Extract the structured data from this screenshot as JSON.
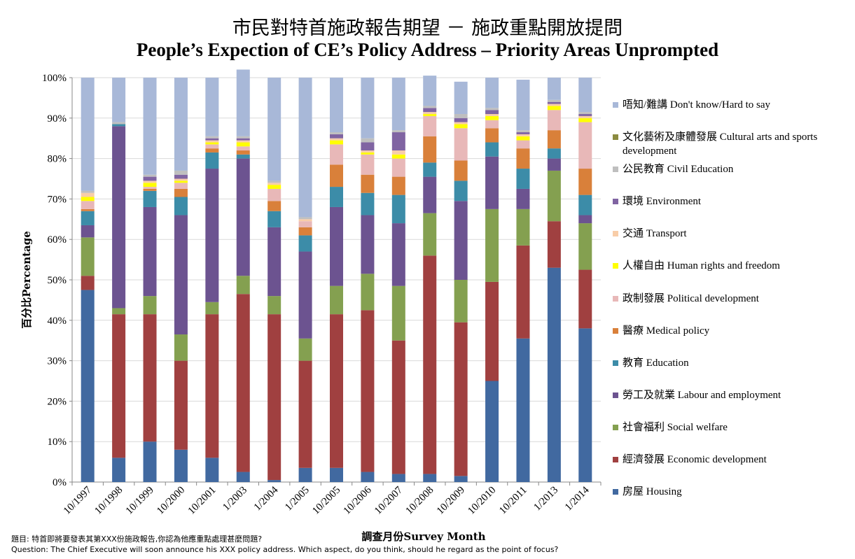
{
  "title_zh": "市民對特首施政報告期望 － 施政重點開放提問",
  "title_en": "People’s Expection of CE’s Policy Address – Priority Areas Unprompted",
  "footnote_zh": "題目: 特首即將要發表其第XXX份施政報告,你認為他應重點處理甚麼問題?",
  "footnote_en": "Question: The Chief Executive  will  soon announce his XXX policy  address. Which aspect, do you think,  should he regard as the point of focus?",
  "chart_data": {
    "type": "bar",
    "stacked": true,
    "xlabel": "調查月份Survey Month",
    "ylabel": "百分比Percentage",
    "ylim": [
      0,
      100
    ],
    "yticks": [
      "0%",
      "10%",
      "20%",
      "30%",
      "40%",
      "50%",
      "60%",
      "70%",
      "80%",
      "90%",
      "100%"
    ],
    "legend_position": "right",
    "categories": [
      "10/1997",
      "10/1998",
      "10/1999",
      "10/2000",
      "10/2001",
      "1/2003",
      "1/2004",
      "1/2005",
      "10/2005",
      "10/2006",
      "10/2007",
      "10/2008",
      "10/2009",
      "10/2010",
      "10/2011",
      "1/2013",
      "1/2014"
    ],
    "series": [
      {
        "name": "房屋 Housing",
        "color": "#4169A0",
        "values": [
          47.5,
          6,
          10,
          8,
          6,
          2.5,
          0.5,
          3.5,
          3.5,
          2.5,
          2,
          2,
          1.5,
          25,
          35.5,
          53,
          38
        ]
      },
      {
        "name": "經濟發展 Economic development",
        "color": "#A04040",
        "values": [
          3.5,
          35.5,
          31.5,
          22,
          35.5,
          44,
          41,
          26.5,
          38,
          40,
          33,
          54,
          38,
          24.5,
          23,
          11.5,
          14.5
        ]
      },
      {
        "name": "社會福利 Social welfare",
        "color": "#84A050",
        "values": [
          9.5,
          1.5,
          4.5,
          6.5,
          3,
          4.5,
          4.5,
          5.5,
          7,
          9,
          13.5,
          10.5,
          10.5,
          18,
          9,
          12.5,
          11.5
        ]
      },
      {
        "name": "勞工及就業 Labour and employment",
        "color": "#6C5390",
        "values": [
          3,
          45,
          22,
          29.5,
          33,
          29,
          17,
          21.5,
          19.5,
          14.5,
          15.5,
          9,
          19.5,
          13,
          5,
          3,
          2
        ]
      },
      {
        "name": "教育 Education",
        "color": "#3C8CA8",
        "values": [
          3.5,
          0.5,
          4,
          4.5,
          4,
          1,
          4,
          4,
          5,
          5.5,
          7,
          3.5,
          5,
          3.5,
          5,
          2.5,
          5
        ]
      },
      {
        "name": "醫療 Medical policy",
        "color": "#D9803A",
        "values": [
          0.5,
          0,
          0.5,
          2,
          1,
          1,
          2.5,
          2,
          5.5,
          4.5,
          4.5,
          6.5,
          5,
          3.5,
          5,
          4.5,
          6.5
        ]
      },
      {
        "name": "政制發展 Political development",
        "color": "#E8B8B8",
        "values": [
          2,
          0,
          0.5,
          1.5,
          1,
          1,
          3,
          1.5,
          5,
          5,
          4.5,
          5,
          8,
          2,
          2,
          5,
          11.5
        ]
      },
      {
        "name": "人權自由 Human rights and freedom",
        "color": "#FFFF00",
        "values": [
          1,
          0,
          1,
          0.5,
          0.5,
          1,
          1,
          0,
          1,
          0.5,
          1,
          0.5,
          1,
          1,
          1,
          1,
          1
        ]
      },
      {
        "name": "交通 Transport",
        "color": "#F8CDA8",
        "values": [
          1,
          0,
          0.5,
          0.5,
          0.5,
          0.5,
          0.5,
          0.5,
          0.5,
          0.5,
          1,
          0.5,
          0.5,
          0.5,
          0.5,
          0.5,
          0.5
        ]
      },
      {
        "name": "環境 Environment",
        "color": "#8064A2",
        "values": [
          0,
          0,
          1,
          1,
          0.5,
          0.5,
          0,
          0,
          1,
          2,
          4.5,
          1,
          1,
          1,
          0.5,
          0.5,
          0.5
        ]
      },
      {
        "name": "公民教育 Civil Education",
        "color": "#BFBFBF",
        "values": [
          0.5,
          0.5,
          0.5,
          1,
          0.5,
          0.5,
          0.5,
          0.5,
          0.5,
          1,
          0.5,
          0.5,
          1,
          0.5,
          0.5,
          0.5,
          0.5
        ]
      },
      {
        "name": "文化藝術及康體發展 Cultural arts and sports development",
        "color": "#8B8B40",
        "values": [
          0,
          0,
          0,
          0,
          0,
          0,
          0,
          0,
          0,
          0,
          0,
          0,
          0,
          0,
          0,
          0,
          0
        ]
      },
      {
        "name": "唔知/難講 Don't know/Hard to say",
        "color": "#A8B8D8",
        "values": [
          28,
          11,
          24,
          23,
          14.5,
          16.5,
          25.5,
          34.5,
          13.5,
          15,
          13,
          7.5,
          8,
          7.5,
          12.5,
          5.5,
          8.5
        ]
      }
    ]
  }
}
